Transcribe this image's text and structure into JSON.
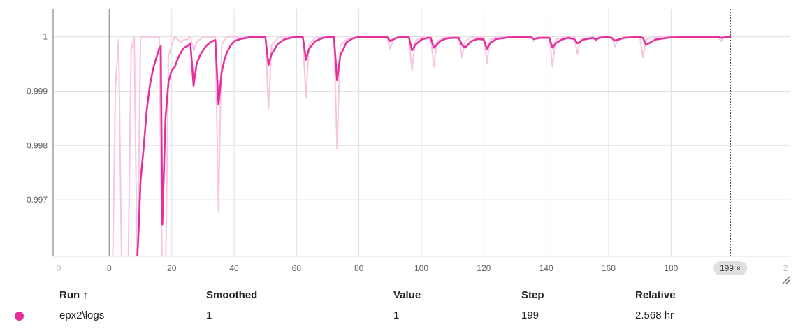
{
  "chart_data": {
    "type": "line",
    "x_ticks": [
      0,
      20,
      40,
      60,
      80,
      100,
      120,
      140,
      160,
      180
    ],
    "faded_x_ticks": [
      "0",
      "2"
    ],
    "y_ticks": [
      0.997,
      0.998,
      0.999,
      1
    ],
    "y_tick_labels": [
      "0.997",
      "0.998",
      "0.999",
      "1"
    ],
    "xlim": [
      -18,
      218
    ],
    "ylim": [
      0.99596,
      1.00051
    ],
    "grid": true,
    "colors": {
      "smoothed": "#e5309b",
      "raw": "#f7c5e1",
      "grid": "#e0e0e0",
      "axis": "#9e9e9e",
      "cursor": "#424242"
    },
    "cursor_step": 199,
    "cursor_label": "199 ×",
    "series": [
      {
        "role": "raw",
        "x": [
          0,
          1,
          2,
          3,
          4,
          5,
          6,
          7,
          8,
          9,
          10,
          11,
          12,
          13,
          14,
          15,
          16,
          17,
          18,
          19,
          20,
          21,
          22,
          23,
          24,
          25,
          26,
          27,
          28,
          29,
          30,
          31,
          32,
          33,
          34,
          35,
          36,
          37,
          38,
          40,
          45,
          50,
          51,
          52,
          54,
          56,
          60,
          62,
          63,
          64,
          66,
          70,
          72,
          73,
          74,
          76,
          80,
          85,
          89,
          90,
          91,
          93,
          96,
          97,
          98,
          100,
          103,
          104,
          105,
          108,
          112,
          113,
          114,
          116,
          120,
          121,
          122,
          125,
          130,
          135,
          136,
          137,
          140,
          141,
          142,
          143,
          146,
          149,
          150,
          151,
          155,
          156,
          157,
          161,
          162,
          163,
          166,
          170,
          171,
          172,
          175,
          180,
          185,
          190,
          195,
          196,
          197,
          199
        ],
        "y": [
          0.9955,
          0.9955,
          0.9991,
          0.99995,
          0.9955,
          0.9955,
          0.9955,
          0.99975,
          1.0,
          0.9955,
          1.0,
          1.0,
          1.0,
          1.0,
          1.0,
          1.0,
          1.0,
          0.9955,
          0.9955,
          0.99965,
          0.99985,
          1.0,
          0.99995,
          0.9999,
          0.99995,
          0.99995,
          1.0,
          0.99975,
          0.9999,
          0.99995,
          1.0,
          1.0,
          1.0,
          1.0,
          1.0,
          0.9968,
          0.99985,
          0.99995,
          1.0,
          1.0,
          1.0,
          1.0,
          0.99868,
          0.99985,
          0.99998,
          1.0,
          1.0,
          1.0,
          0.99888,
          0.99985,
          0.99998,
          1.0,
          1.0,
          0.99795,
          0.99985,
          0.99995,
          1.0,
          1.0,
          1.0,
          0.99978,
          0.99995,
          1.0,
          1.0,
          0.99938,
          0.99992,
          1.0,
          1.0,
          0.99945,
          0.99992,
          1.0,
          1.0,
          0.99962,
          0.99992,
          1.0,
          1.0,
          0.99952,
          0.99995,
          1.0,
          1.0,
          1.0,
          0.99992,
          1.0,
          1.0,
          1.0,
          0.99945,
          0.99995,
          1.0,
          1.0,
          0.99968,
          0.99995,
          1.0,
          0.99992,
          1.0,
          1.0,
          0.99982,
          0.99995,
          1.0,
          1.0,
          0.99962,
          0.99995,
          1.0,
          1.0,
          1.0,
          1.0,
          1.0,
          0.99992,
          1.0,
          1.0
        ]
      },
      {
        "role": "smoothed",
        "x": [
          9,
          9.5,
          10,
          11,
          12,
          13,
          14,
          15,
          16,
          16.5,
          17,
          18,
          19,
          20,
          21,
          22,
          23,
          24,
          25,
          26,
          27,
          28,
          29,
          30,
          31,
          32,
          33,
          34,
          35,
          36,
          37,
          38,
          39,
          40,
          42,
          44,
          46,
          48,
          50,
          51,
          52,
          54,
          56,
          58,
          60,
          62,
          63,
          64,
          66,
          68,
          70,
          72,
          73,
          74,
          76,
          78,
          80,
          85,
          88,
          89,
          90,
          92,
          94,
          96,
          97,
          98,
          100,
          102,
          103,
          104,
          106,
          108,
          110,
          112,
          113,
          114,
          116,
          118,
          120,
          121,
          122,
          124,
          128,
          132,
          135,
          136,
          138,
          141,
          142,
          143,
          145,
          147,
          149,
          150,
          152,
          155,
          156,
          157,
          159,
          161,
          162,
          165,
          170,
          171,
          172,
          175,
          180,
          190,
          195,
          196,
          197,
          199
        ],
        "y": [
          0.99596,
          0.99655,
          0.99735,
          0.99795,
          0.99865,
          0.9991,
          0.9994,
          0.9996,
          0.99978,
          0.99983,
          0.99655,
          0.9985,
          0.99918,
          0.99938,
          0.99945,
          0.9996,
          0.99972,
          0.9998,
          0.99983,
          0.99988,
          0.9991,
          0.9995,
          0.99965,
          0.99975,
          0.99983,
          0.99988,
          0.99992,
          0.99994,
          0.99875,
          0.99935,
          0.9996,
          0.99975,
          0.99985,
          0.99992,
          0.99996,
          0.99998,
          1.0,
          1.0,
          1.0,
          0.99948,
          0.99968,
          0.99987,
          0.99995,
          0.99998,
          1.0,
          1.0,
          0.99958,
          0.99978,
          0.99992,
          0.99997,
          1.0,
          1.0,
          0.9992,
          0.99965,
          0.9999,
          0.99997,
          1.0,
          1.0,
          1.0,
          1.0,
          0.99992,
          0.99998,
          1.0,
          1.0,
          0.99975,
          0.99985,
          0.99995,
          0.99998,
          0.99998,
          0.9998,
          0.99992,
          0.99997,
          0.99998,
          0.99998,
          0.99985,
          0.9998,
          0.99992,
          0.99996,
          0.99995,
          0.99978,
          0.99988,
          0.99996,
          0.99999,
          1.0,
          1.0,
          0.99996,
          0.99998,
          0.99998,
          0.9998,
          0.99988,
          0.99995,
          0.99998,
          0.99996,
          0.99988,
          0.99995,
          0.99998,
          0.99995,
          0.99998,
          1.0,
          0.99998,
          0.99993,
          0.99998,
          1.0,
          0.99998,
          0.99985,
          0.99995,
          0.99999,
          1.0,
          1.0,
          0.99998,
          0.99999,
          1.0
        ]
      }
    ]
  },
  "table": {
    "headers": {
      "run": "Run ↑",
      "smoothed": "Smoothed",
      "value": "Value",
      "step": "Step",
      "relative": "Relative"
    },
    "row": {
      "run": "epx2\\logs",
      "smoothed": "1",
      "value": "1",
      "step": "199",
      "relative": "2.568 hr",
      "dot_color": "#e5309b"
    }
  },
  "icons": {
    "resize": "resize-corner-icon"
  }
}
